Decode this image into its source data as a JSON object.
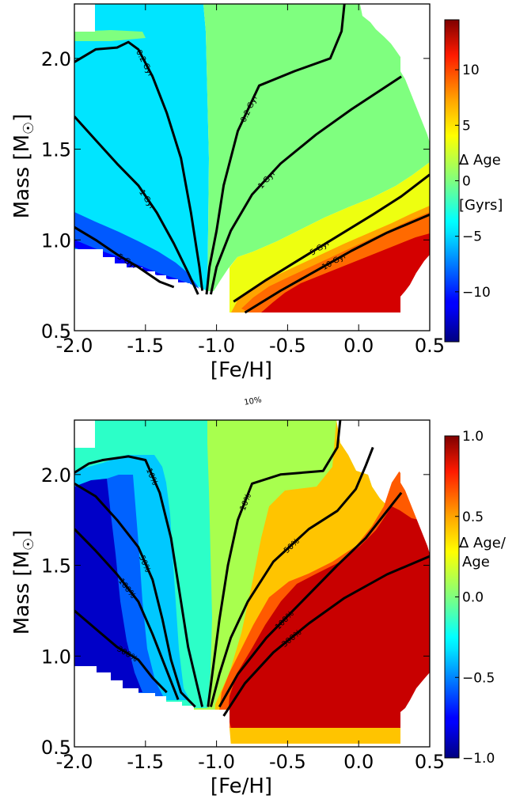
{
  "chart_data": [
    {
      "type": "heatmap",
      "panel": "top",
      "xlabel": "[Fe/H]",
      "ylabel": "Mass [M☉]",
      "xlim": [
        -2.0,
        0.5
      ],
      "ylim": [
        0.5,
        2.3
      ],
      "xticks": [
        "-2.0",
        "-1.5",
        "-1.0",
        "-0.5",
        "0.0",
        "0.5"
      ],
      "yticks": [
        "0.5",
        "1.0",
        "1.5",
        "2.0"
      ],
      "colorbar": {
        "label": [
          "Δ Age",
          "[Gyrs]"
        ],
        "range": [
          -14.5,
          14.5
        ],
        "ticks": [
          "−10",
          "−5",
          "0",
          "5",
          "10"
        ],
        "tick_values": [
          -10,
          -5,
          0,
          5,
          10
        ]
      },
      "regions": [
        {
          "value": -3,
          "color": "#00e5ff"
        },
        {
          "value": 2,
          "color": "#7fff7f"
        },
        {
          "value": -9,
          "color": "#0059ff"
        },
        {
          "value": -11,
          "color": "#0000ff"
        },
        {
          "value": 4,
          "color": "#eeff10"
        },
        {
          "value": 7,
          "color": "#ffa500"
        },
        {
          "value": 9,
          "color": "#ff6a00"
        },
        {
          "value": 13,
          "color": "#d40000"
        },
        {
          "value": -5,
          "color": "#00aaff"
        }
      ],
      "contours": [
        {
          "label": "0.2 Gyr",
          "points": [
            [
              -2.0,
              1.98
            ],
            [
              -1.85,
              2.05
            ],
            [
              -1.7,
              2.06
            ],
            [
              -1.62,
              2.09
            ],
            [
              -1.55,
              2.05
            ],
            [
              -1.45,
              1.9
            ],
            [
              -1.35,
              1.7
            ],
            [
              -1.25,
              1.45
            ],
            [
              -1.18,
              1.15
            ],
            [
              -1.12,
              0.85
            ],
            [
              -1.1,
              0.72
            ]
          ]
        },
        {
          "label": "0.2 Gyr",
          "points": [
            [
              -1.07,
              0.7
            ],
            [
              -1.05,
              0.85
            ],
            [
              -1.0,
              1.05
            ],
            [
              -0.95,
              1.3
            ],
            [
              -0.85,
              1.6
            ],
            [
              -0.7,
              1.85
            ],
            [
              -0.45,
              1.93
            ],
            [
              -0.2,
              2.0
            ],
            [
              -0.12,
              2.15
            ],
            [
              -0.1,
              2.3
            ]
          ]
        },
        {
          "label": "1 Gyr",
          "points": [
            [
              -2.0,
              1.68
            ],
            [
              -1.85,
              1.55
            ],
            [
              -1.7,
              1.42
            ],
            [
              -1.55,
              1.3
            ],
            [
              -1.42,
              1.15
            ],
            [
              -1.3,
              0.98
            ],
            [
              -1.2,
              0.82
            ],
            [
              -1.13,
              0.7
            ]
          ]
        },
        {
          "label": "1 Gyr",
          "points": [
            [
              -1.04,
              0.7
            ],
            [
              -1.0,
              0.85
            ],
            [
              -0.9,
              1.05
            ],
            [
              -0.75,
              1.25
            ],
            [
              -0.55,
              1.42
            ],
            [
              -0.3,
              1.58
            ],
            [
              -0.05,
              1.72
            ],
            [
              0.3,
              1.9
            ]
          ]
        },
        {
          "label": "5 Gyr",
          "points": [
            [
              -2.0,
              1.07
            ],
            [
              -1.85,
              1.0
            ],
            [
              -1.7,
              0.92
            ],
            [
              -1.55,
              0.85
            ],
            [
              -1.4,
              0.77
            ],
            [
              -1.3,
              0.74
            ]
          ]
        },
        {
          "label": "5 Gyr",
          "points": [
            [
              -0.88,
              0.66
            ],
            [
              -0.65,
              0.78
            ],
            [
              -0.4,
              0.9
            ],
            [
              -0.15,
              1.02
            ],
            [
              0.1,
              1.14
            ],
            [
              0.3,
              1.24
            ],
            [
              0.5,
              1.36
            ]
          ]
        },
        {
          "label": "10 Gyr",
          "points": [
            [
              -0.8,
              0.6
            ],
            [
              -0.55,
              0.72
            ],
            [
              -0.3,
              0.83
            ],
            [
              -0.05,
              0.94
            ],
            [
              0.2,
              1.04
            ],
            [
              0.5,
              1.14
            ]
          ]
        }
      ]
    },
    {
      "type": "heatmap",
      "panel": "bottom",
      "xlabel": "[Fe/H]",
      "ylabel": "Mass [M☉]",
      "xlim": [
        -2.0,
        0.5
      ],
      "ylim": [
        0.5,
        2.3
      ],
      "xticks": [
        "-2.0",
        "-1.5",
        "-1.0",
        "-0.5",
        "0.0",
        "0.5"
      ],
      "yticks": [
        "0.5",
        "1.0",
        "1.5",
        "2.0"
      ],
      "colorbar": {
        "label": [
          "Δ Age/",
          "Age"
        ],
        "range": [
          -1.0,
          1.0
        ],
        "ticks": [
          "−1.0",
          "−0.5",
          "0.0",
          "0.5",
          "1.0"
        ],
        "tick_values": [
          -1.0,
          -0.5,
          0.0,
          0.5,
          1.0
        ]
      },
      "regions": [
        {
          "value": -0.85,
          "color": "#0000c8"
        },
        {
          "value": -0.6,
          "color": "#0062ff"
        },
        {
          "value": -0.35,
          "color": "#00c8ff"
        },
        {
          "value": -0.1,
          "color": "#2cffc8"
        },
        {
          "value": 0.1,
          "color": "#a8ff4e"
        },
        {
          "value": 0.45,
          "color": "#ffc400"
        },
        {
          "value": 0.7,
          "color": "#ff5a00"
        },
        {
          "value": 0.95,
          "color": "#c80000"
        }
      ],
      "annotations": [
        "10%"
      ],
      "contours": [
        {
          "label": "10%",
          "points": [
            [
              -2.0,
              2.01
            ],
            [
              -1.9,
              2.06
            ],
            [
              -1.8,
              2.08
            ],
            [
              -1.62,
              2.1
            ],
            [
              -1.5,
              2.08
            ],
            [
              -1.4,
              1.9
            ],
            [
              -1.32,
              1.65
            ],
            [
              -1.26,
              1.35
            ],
            [
              -1.2,
              1.05
            ],
            [
              -1.14,
              0.85
            ],
            [
              -1.1,
              0.72
            ]
          ]
        },
        {
          "label": "10%",
          "points": [
            [
              -1.06,
              0.72
            ],
            [
              -1.03,
              0.9
            ],
            [
              -0.98,
              1.2
            ],
            [
              -0.92,
              1.5
            ],
            [
              -0.85,
              1.75
            ],
            [
              -0.75,
              1.95
            ],
            [
              -0.55,
              2.0
            ],
            [
              -0.25,
              2.02
            ],
            [
              -0.15,
              2.15
            ],
            [
              -0.13,
              2.3
            ]
          ]
        },
        {
          "label": "50%",
          "points": [
            [
              -2.0,
              1.95
            ],
            [
              -1.85,
              1.88
            ],
            [
              -1.7,
              1.75
            ],
            [
              -1.55,
              1.6
            ],
            [
              -1.45,
              1.42
            ],
            [
              -1.38,
              1.2
            ],
            [
              -1.32,
              0.98
            ],
            [
              -1.25,
              0.8
            ],
            [
              -1.15,
              0.72
            ]
          ]
        },
        {
          "label": "50%",
          "points": [
            [
              -1.04,
              0.72
            ],
            [
              -0.98,
              0.9
            ],
            [
              -0.9,
              1.1
            ],
            [
              -0.78,
              1.3
            ],
            [
              -0.6,
              1.52
            ],
            [
              -0.35,
              1.7
            ],
            [
              -0.15,
              1.8
            ],
            [
              -0.02,
              1.92
            ],
            [
              0.05,
              2.05
            ],
            [
              0.1,
              2.15
            ]
          ]
        },
        {
          "label": "100%",
          "points": [
            [
              -2.0,
              1.7
            ],
            [
              -1.85,
              1.58
            ],
            [
              -1.7,
              1.45
            ],
            [
              -1.55,
              1.3
            ],
            [
              -1.45,
              1.12
            ],
            [
              -1.35,
              0.92
            ],
            [
              -1.27,
              0.76
            ]
          ]
        },
        {
          "label": "100%",
          "points": [
            [
              -0.98,
              0.72
            ],
            [
              -0.85,
              0.9
            ],
            [
              -0.65,
              1.1
            ],
            [
              -0.4,
              1.3
            ],
            [
              -0.15,
              1.5
            ],
            [
              0.05,
              1.65
            ],
            [
              0.3,
              1.9
            ]
          ]
        },
        {
          "label": "300%",
          "points": [
            [
              -2.0,
              1.25
            ],
            [
              -1.85,
              1.15
            ],
            [
              -1.7,
              1.05
            ],
            [
              -1.55,
              0.98
            ],
            [
              -1.45,
              0.88
            ],
            [
              -1.35,
              0.8
            ]
          ]
        },
        {
          "label": "300%",
          "points": [
            [
              -0.95,
              0.67
            ],
            [
              -0.8,
              0.85
            ],
            [
              -0.6,
              1.02
            ],
            [
              -0.35,
              1.18
            ],
            [
              -0.1,
              1.32
            ],
            [
              0.2,
              1.45
            ],
            [
              0.5,
              1.55
            ]
          ]
        }
      ]
    }
  ]
}
